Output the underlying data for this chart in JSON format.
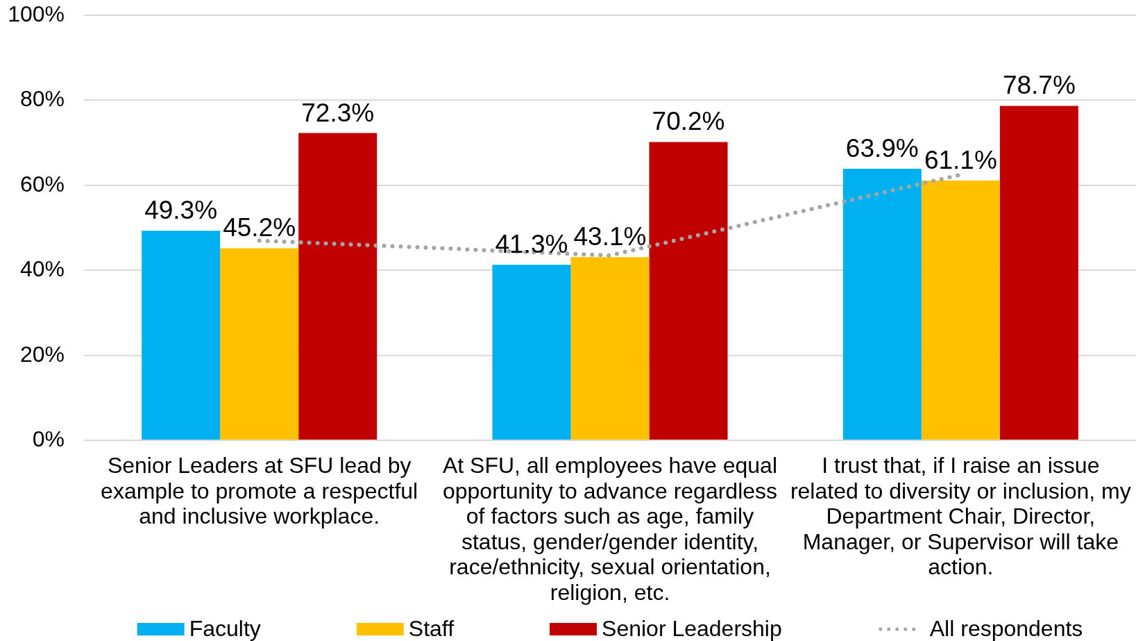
{
  "chart_data": {
    "type": "bar",
    "categories": [
      "Senior Leaders at SFU lead by example to promote a respectful and inclusive workplace.",
      "At SFU, all employees have equal opportunity to advance regardless of factors such as age, family status, gender/gender identity, race/ethnicity, sexual orientation, religion, etc.",
      "I trust that, if I raise an issue related to diversity or inclusion, my Department Chair, Director, Manager, or Supervisor will take action."
    ],
    "series": [
      {
        "name": "Faculty",
        "color": "#00b0f0",
        "values": [
          49.3,
          41.3,
          63.9
        ],
        "value_labels": [
          "49.3%",
          "41.3%",
          "63.9%"
        ]
      },
      {
        "name": "Staff",
        "color": "#ffc000",
        "values": [
          45.2,
          43.1,
          61.1
        ],
        "value_labels": [
          "45.2%",
          "43.1%",
          "61.1%"
        ]
      },
      {
        "name": "Senior Leadership",
        "color": "#c00000",
        "values": [
          72.3,
          70.2,
          78.7
        ],
        "value_labels": [
          "72.3%",
          "70.2%",
          "78.7%"
        ]
      },
      {
        "name": "All respondents",
        "type": "line",
        "color": "#a5a5a5",
        "values": [
          47,
          43.5,
          62.5
        ],
        "line_style": "dotted",
        "marker": "none"
      }
    ],
    "ylim": [
      0,
      100
    ],
    "yticks": [
      {
        "value": 0,
        "label": "0%"
      },
      {
        "value": 20,
        "label": "20%"
      },
      {
        "value": 40,
        "label": "40%"
      },
      {
        "value": 60,
        "label": "60%"
      },
      {
        "value": 80,
        "label": "80%"
      },
      {
        "value": 100,
        "label": "100%"
      }
    ],
    "grid": "y",
    "legend": "bottom"
  }
}
